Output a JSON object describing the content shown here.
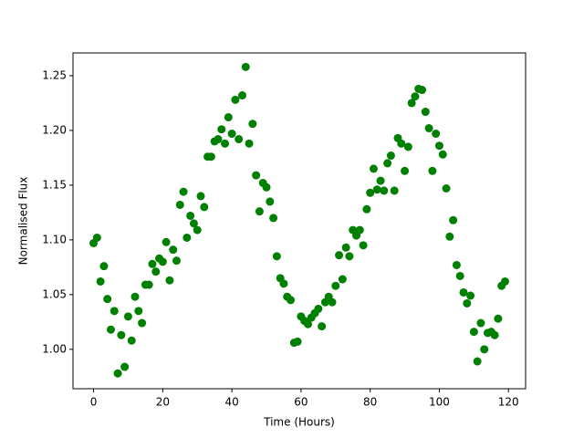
{
  "chart_data": {
    "type": "scatter",
    "xlabel": "Time (Hours)",
    "ylabel": "Normalised Flux",
    "color": "#008000",
    "x": [
      0,
      1,
      2,
      3,
      4,
      5,
      6,
      7,
      8,
      9,
      10,
      11,
      12,
      13,
      14,
      15,
      16,
      17,
      18,
      19,
      20,
      21,
      22,
      23,
      24,
      25,
      26,
      27,
      28,
      29,
      30,
      31,
      32,
      33,
      34,
      35,
      36,
      37,
      38,
      39,
      40,
      41,
      42,
      43,
      44,
      45,
      46,
      47,
      48,
      49,
      50,
      51,
      52,
      53,
      54,
      55,
      56,
      57,
      58,
      59,
      60,
      61,
      62,
      63,
      64,
      65,
      66,
      67,
      68,
      69,
      70,
      71,
      72,
      73,
      74,
      75,
      76,
      77,
      78,
      79,
      80,
      81,
      82,
      83,
      84,
      85,
      86,
      87,
      88,
      89,
      90,
      91,
      92,
      93,
      94,
      95,
      96,
      97,
      98,
      99,
      100,
      101,
      102,
      103,
      104,
      105,
      106,
      107,
      108,
      109,
      110,
      111,
      112,
      113,
      114,
      115,
      116,
      117,
      118,
      119
    ],
    "values": [
      1.097,
      1.102,
      1.062,
      1.076,
      1.046,
      1.018,
      1.035,
      0.978,
      1.013,
      0.984,
      1.03,
      1.008,
      1.048,
      1.035,
      1.024,
      1.059,
      1.059,
      1.078,
      1.071,
      1.083,
      1.08,
      1.098,
      1.063,
      1.091,
      1.081,
      1.132,
      1.144,
      1.102,
      1.122,
      1.115,
      1.109,
      1.14,
      1.13,
      1.176,
      1.176,
      1.19,
      1.192,
      1.201,
      1.188,
      1.212,
      1.197,
      1.228,
      1.192,
      1.232,
      1.258,
      1.188,
      1.206,
      1.159,
      1.126,
      1.152,
      1.148,
      1.135,
      1.12,
      1.085,
      1.065,
      1.06,
      1.048,
      1.045,
      1.006,
      1.007,
      1.03,
      1.026,
      1.023,
      1.029,
      1.033,
      1.037,
      1.021,
      1.043,
      1.048,
      1.043,
      1.058,
      1.086,
      1.064,
      1.093,
      1.085,
      1.109,
      1.104,
      1.109,
      1.095,
      1.128,
      1.143,
      1.165,
      1.146,
      1.154,
      1.145,
      1.17,
      1.177,
      1.145,
      1.193,
      1.188,
      1.163,
      1.185,
      1.225,
      1.231,
      1.238,
      1.237,
      1.217,
      1.202,
      1.163,
      1.197,
      1.186,
      1.178,
      1.147,
      1.103,
      1.118,
      1.077,
      1.067,
      1.052,
      1.042,
      1.049,
      1.016,
      0.989,
      1.024,
      1.0,
      1.015,
      1.016,
      1.013,
      1.028,
      1.058,
      1.062
    ],
    "xlim": [
      -5.95,
      124.95
    ],
    "ylim": [
      0.964,
      1.2708
    ],
    "xticks": [
      0,
      20,
      40,
      60,
      80,
      100,
      120
    ],
    "yticks": [
      {
        "value": 1.0,
        "label": "1.00"
      },
      {
        "value": 1.05,
        "label": "1.05"
      },
      {
        "value": 1.1,
        "label": "1.10"
      },
      {
        "value": 1.15,
        "label": "1.15"
      },
      {
        "value": 1.2,
        "label": "1.20"
      },
      {
        "value": 1.25,
        "label": "1.25"
      }
    ]
  }
}
